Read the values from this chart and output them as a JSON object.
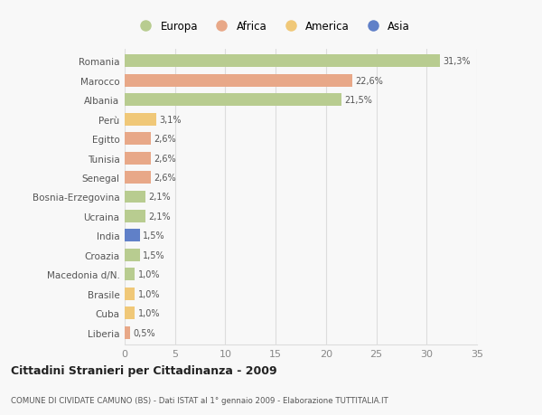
{
  "categories": [
    "Liberia",
    "Cuba",
    "Brasile",
    "Macedonia d/N.",
    "Croazia",
    "India",
    "Ucraina",
    "Bosnia-Erzegovina",
    "Senegal",
    "Tunisia",
    "Egitto",
    "Perù",
    "Albania",
    "Marocco",
    "Romania"
  ],
  "values": [
    0.5,
    1.0,
    1.0,
    1.0,
    1.5,
    1.5,
    2.1,
    2.1,
    2.6,
    2.6,
    2.6,
    3.1,
    21.5,
    22.6,
    31.3
  ],
  "labels": [
    "0,5%",
    "1,0%",
    "1,0%",
    "1,0%",
    "1,5%",
    "1,5%",
    "2,1%",
    "2,1%",
    "2,6%",
    "2,6%",
    "2,6%",
    "3,1%",
    "21,5%",
    "22,6%",
    "31,3%"
  ],
  "colors": [
    "#e8a888",
    "#f0c878",
    "#f0c878",
    "#b8cc90",
    "#b8cc90",
    "#6080c8",
    "#b8cc90",
    "#b8cc90",
    "#e8a888",
    "#e8a888",
    "#e8a888",
    "#f0c878",
    "#b8cc90",
    "#e8a888",
    "#b8cc90"
  ],
  "legend_labels": [
    "Europa",
    "Africa",
    "America",
    "Asia"
  ],
  "legend_colors": [
    "#b8cc90",
    "#e8a888",
    "#f0c878",
    "#6080c8"
  ],
  "title": "Cittadini Stranieri per Cittadinanza - 2009",
  "subtitle": "COMUNE DI CIVIDATE CAMUNO (BS) - Dati ISTAT al 1° gennaio 2009 - Elaborazione TUTTITALIA.IT",
  "xlim": [
    0,
    35
  ],
  "xticks": [
    0,
    5,
    10,
    15,
    20,
    25,
    30,
    35
  ],
  "background_color": "#f8f8f8",
  "bar_height": 0.65,
  "grid_color": "#dddddd",
  "label_color": "#555555",
  "tick_color": "#888888"
}
